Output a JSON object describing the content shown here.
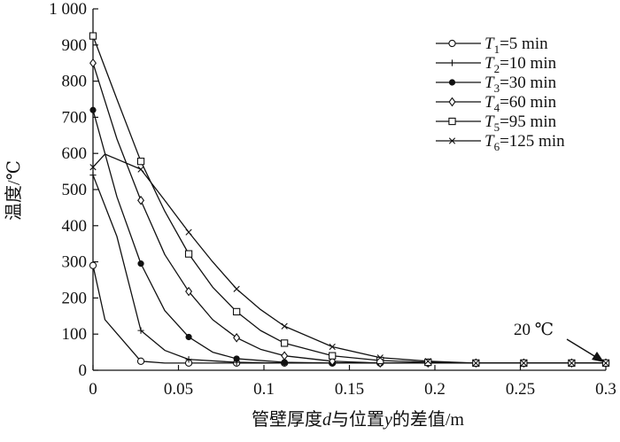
{
  "chart_data": {
    "type": "line",
    "xlabel_parts": {
      "pre": "管壁厚度",
      "d": "d",
      "mid": "与位置",
      "y": "y",
      "post": "的差值/m"
    },
    "ylabel": "温度/℃",
    "xlim": [
      0,
      0.3
    ],
    "ylim": [
      0,
      1000
    ],
    "x_ticks": [
      0,
      0.05,
      0.1,
      0.15,
      0.2,
      0.25,
      0.3
    ],
    "x_tick_labels": [
      "0",
      "0.05",
      "0.1",
      "0.15",
      "0.2",
      "0.25",
      "0.3"
    ],
    "y_ticks": [
      0,
      100,
      200,
      300,
      400,
      500,
      600,
      700,
      800,
      900,
      1000
    ],
    "y_tick_labels": [
      "0",
      "100",
      "200",
      "300",
      "400",
      "500",
      "600",
      "700",
      "800",
      "900",
      "1 000"
    ],
    "grid": false,
    "legend_position": "top-right",
    "annotation": {
      "text": "20 ℃",
      "x": 0.3,
      "y": 20
    },
    "series": [
      {
        "name": "T1=5 min",
        "sym": "T",
        "sub": "1",
        "rest": "=5 min",
        "marker": "circle-open",
        "x": [
          0,
          0.007,
          0.028,
          0.042,
          0.056,
          0.084,
          0.112,
          0.14,
          0.168,
          0.196,
          0.224,
          0.252,
          0.28,
          0.3
        ],
        "y": [
          290,
          140,
          25,
          20,
          20,
          20,
          20,
          20,
          20,
          20,
          20,
          20,
          20,
          20
        ],
        "mx": [
          0,
          0.028,
          0.056,
          0.084,
          0.112,
          0.14,
          0.168,
          0.196,
          0.224,
          0.252,
          0.28,
          0.3
        ],
        "my": [
          290,
          25,
          20,
          20,
          20,
          20,
          20,
          20,
          20,
          20,
          20,
          20
        ]
      },
      {
        "name": "T2=10 min",
        "sym": "T",
        "sub": "2",
        "rest": "=10 min",
        "marker": "plus",
        "x": [
          0,
          0.014,
          0.028,
          0.042,
          0.056,
          0.084,
          0.112,
          0.14,
          0.168,
          0.196,
          0.224,
          0.252,
          0.28,
          0.3
        ],
        "y": [
          540,
          370,
          110,
          55,
          30,
          22,
          20,
          20,
          20,
          20,
          20,
          20,
          20,
          20
        ],
        "mx": [
          0,
          0.028,
          0.056,
          0.084,
          0.112,
          0.14,
          0.168,
          0.196,
          0.224,
          0.252,
          0.28,
          0.3
        ],
        "my": [
          540,
          110,
          30,
          22,
          20,
          20,
          20,
          20,
          20,
          20,
          20,
          20
        ]
      },
      {
        "name": "T3=30 min",
        "sym": "T",
        "sub": "3",
        "rest": "=30 min",
        "marker": "dot",
        "x": [
          0,
          0.014,
          0.028,
          0.042,
          0.056,
          0.07,
          0.084,
          0.112,
          0.14,
          0.168,
          0.196,
          0.224,
          0.252,
          0.28,
          0.3
        ],
        "y": [
          720,
          480,
          295,
          165,
          92,
          50,
          32,
          22,
          20,
          20,
          20,
          20,
          20,
          20,
          20
        ],
        "mx": [
          0,
          0.028,
          0.056,
          0.084,
          0.112,
          0.14,
          0.168,
          0.196,
          0.224,
          0.252,
          0.28,
          0.3
        ],
        "my": [
          720,
          295,
          92,
          32,
          22,
          20,
          20,
          20,
          20,
          20,
          20,
          20
        ]
      },
      {
        "name": "T4=60 min",
        "sym": "T",
        "sub": "4",
        "rest": "=60 min",
        "marker": "diamond-open",
        "x": [
          0,
          0.014,
          0.028,
          0.042,
          0.056,
          0.07,
          0.084,
          0.098,
          0.112,
          0.14,
          0.168,
          0.196,
          0.224,
          0.252,
          0.28,
          0.3
        ],
        "y": [
          850,
          640,
          470,
          320,
          218,
          140,
          90,
          58,
          40,
          25,
          20,
          20,
          20,
          20,
          20,
          20
        ],
        "mx": [
          0,
          0.028,
          0.056,
          0.084,
          0.112,
          0.14,
          0.168,
          0.196,
          0.224,
          0.252,
          0.28,
          0.3
        ],
        "my": [
          850,
          470,
          218,
          90,
          40,
          25,
          20,
          20,
          20,
          20,
          20,
          20
        ]
      },
      {
        "name": "T5=95 min",
        "sym": "T",
        "sub": "5",
        "rest": "=95 min",
        "marker": "square-open",
        "x": [
          0,
          0.014,
          0.028,
          0.042,
          0.056,
          0.07,
          0.084,
          0.098,
          0.112,
          0.14,
          0.168,
          0.196,
          0.224,
          0.252,
          0.28,
          0.3
        ],
        "y": [
          925,
          750,
          578,
          440,
          322,
          230,
          162,
          110,
          75,
          40,
          27,
          22,
          20,
          20,
          20,
          20
        ],
        "mx": [
          0,
          0.028,
          0.056,
          0.084,
          0.112,
          0.14,
          0.168,
          0.196,
          0.224,
          0.252,
          0.28,
          0.3
        ],
        "my": [
          925,
          578,
          322,
          162,
          75,
          40,
          27,
          22,
          20,
          20,
          20,
          20
        ]
      },
      {
        "name": "T6=125 min",
        "sym": "T",
        "sub": "6",
        "rest": "=125 min",
        "marker": "x",
        "x": [
          0,
          0.007,
          0.028,
          0.042,
          0.056,
          0.07,
          0.084,
          0.098,
          0.112,
          0.14,
          0.168,
          0.196,
          0.224,
          0.252,
          0.28,
          0.3
        ],
        "y": [
          562,
          598,
          556,
          470,
          382,
          300,
          225,
          168,
          122,
          65,
          35,
          25,
          20,
          20,
          20,
          20
        ],
        "mx": [
          0,
          0.028,
          0.056,
          0.084,
          0.112,
          0.14,
          0.168,
          0.196,
          0.224,
          0.252,
          0.28,
          0.3
        ],
        "my": [
          562,
          556,
          382,
          225,
          122,
          65,
          35,
          25,
          20,
          20,
          20,
          20
        ]
      }
    ]
  }
}
